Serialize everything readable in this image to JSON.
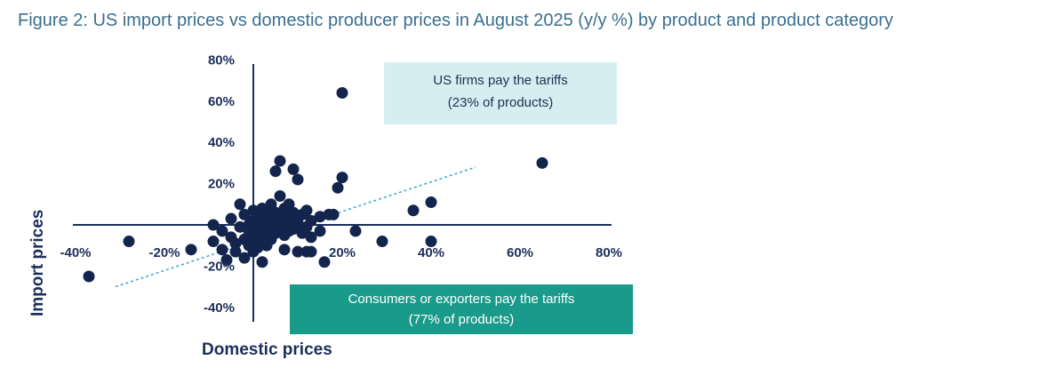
{
  "title": "Figure 2: US import prices vs domestic producer prices in August 2025 (y/y %) by product and product category",
  "colors": {
    "dots": "#13254d",
    "axis": "#1b2f5a",
    "trend": "#3aa6cf",
    "box_top": "#d6eef2",
    "box_bottom": "#1a9a8a"
  },
  "annotations": {
    "top": {
      "line1": "US firms pay the tariffs",
      "line2": "(23% of products)"
    },
    "bottom": {
      "line1": "Consumers or exporters pay the tariffs",
      "line2": "(77% of products)"
    }
  },
  "chart_data": {
    "type": "scatter",
    "title": "US import prices vs domestic producer prices in August 2025 (y/y %) by product and product category",
    "xlabel": "Domestic prices",
    "ylabel": "Import prices",
    "xlim": [
      -40,
      80
    ],
    "ylim": [
      -40,
      80
    ],
    "x_ticks": [
      "-40%",
      "-20%",
      "20%",
      "40%",
      "60%",
      "80%"
    ],
    "x_tick_values": [
      -40,
      -20,
      20,
      40,
      60,
      80
    ],
    "y_ticks": [
      "80%",
      "60%",
      "40%",
      "20%",
      "-20%",
      "-40%"
    ],
    "y_tick_values": [
      80,
      60,
      40,
      20,
      -20,
      -40
    ],
    "grid": false,
    "trend_line": {
      "x": [
        -31,
        50
      ],
      "y": [
        -30,
        28
      ]
    },
    "points": [
      {
        "x": -37,
        "y": -25
      },
      {
        "x": -28,
        "y": -8
      },
      {
        "x": -14,
        "y": -12
      },
      {
        "x": -9,
        "y": -8
      },
      {
        "x": -9,
        "y": 0
      },
      {
        "x": -7,
        "y": -3
      },
      {
        "x": -7,
        "y": -12
      },
      {
        "x": -6,
        "y": -17
      },
      {
        "x": -5,
        "y": 3
      },
      {
        "x": -5,
        "y": -6
      },
      {
        "x": -4,
        "y": -9
      },
      {
        "x": -4,
        "y": -13
      },
      {
        "x": -3,
        "y": -1
      },
      {
        "x": -3,
        "y": 10
      },
      {
        "x": -2,
        "y": 5
      },
      {
        "x": -2,
        "y": -7
      },
      {
        "x": -2,
        "y": -16
      },
      {
        "x": -1,
        "y": 0
      },
      {
        "x": -1,
        "y": -3
      },
      {
        "x": -1,
        "y": -10
      },
      {
        "x": 0,
        "y": 7
      },
      {
        "x": 0,
        "y": 2
      },
      {
        "x": 0,
        "y": -5
      },
      {
        "x": 0,
        "y": -8
      },
      {
        "x": 0,
        "y": -13
      },
      {
        "x": 1,
        "y": 4
      },
      {
        "x": 1,
        "y": 0
      },
      {
        "x": 1,
        "y": -3
      },
      {
        "x": 1,
        "y": -6
      },
      {
        "x": 1,
        "y": -11
      },
      {
        "x": 2,
        "y": 8
      },
      {
        "x": 2,
        "y": 2
      },
      {
        "x": 2,
        "y": -2
      },
      {
        "x": 2,
        "y": -8
      },
      {
        "x": 2,
        "y": -18
      },
      {
        "x": 3,
        "y": 5
      },
      {
        "x": 3,
        "y": 0
      },
      {
        "x": 3,
        "y": -5
      },
      {
        "x": 3,
        "y": -10
      },
      {
        "x": 4,
        "y": 10
      },
      {
        "x": 4,
        "y": 3
      },
      {
        "x": 4,
        "y": -2
      },
      {
        "x": 4,
        "y": -7
      },
      {
        "x": 5,
        "y": 6
      },
      {
        "x": 5,
        "y": 1
      },
      {
        "x": 5,
        "y": -4
      },
      {
        "x": 5,
        "y": 26
      },
      {
        "x": 6,
        "y": 31
      },
      {
        "x": 6,
        "y": 14
      },
      {
        "x": 6,
        "y": 4
      },
      {
        "x": 6,
        "y": -1
      },
      {
        "x": 7,
        "y": 8
      },
      {
        "x": 7,
        "y": 0
      },
      {
        "x": 7,
        "y": -5
      },
      {
        "x": 8,
        "y": 3
      },
      {
        "x": 8,
        "y": -3
      },
      {
        "x": 8,
        "y": 10
      },
      {
        "x": 9,
        "y": 27
      },
      {
        "x": 9,
        "y": 6
      },
      {
        "x": 9,
        "y": -2
      },
      {
        "x": 10,
        "y": 22
      },
      {
        "x": 10,
        "y": 1
      },
      {
        "x": 11,
        "y": 5
      },
      {
        "x": 11,
        "y": -4
      },
      {
        "x": 12,
        "y": 7
      },
      {
        "x": 12,
        "y": -1
      },
      {
        "x": 13,
        "y": 2
      },
      {
        "x": 13,
        "y": -6
      },
      {
        "x": 15,
        "y": 4
      },
      {
        "x": 15,
        "y": -3
      },
      {
        "x": 17,
        "y": 5
      },
      {
        "x": 18,
        "y": 5
      },
      {
        "x": 7,
        "y": -12
      },
      {
        "x": 10,
        "y": -13
      },
      {
        "x": 12,
        "y": -13
      },
      {
        "x": 13,
        "y": -13
      },
      {
        "x": 16,
        "y": -18
      },
      {
        "x": 20,
        "y": 64
      },
      {
        "x": 20,
        "y": 23
      },
      {
        "x": 19,
        "y": 18
      },
      {
        "x": 23,
        "y": -3
      },
      {
        "x": 29,
        "y": -8
      },
      {
        "x": 36,
        "y": 7
      },
      {
        "x": 40,
        "y": 11
      },
      {
        "x": 40,
        "y": -8
      },
      {
        "x": 65,
        "y": 30
      }
    ]
  }
}
